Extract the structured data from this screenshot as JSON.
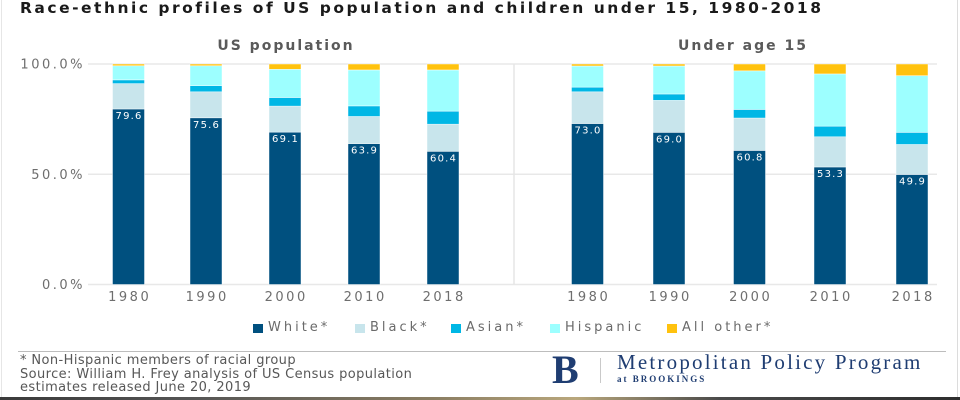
{
  "title": "Race-ethnic profiles of US population and children under 15, 1980-2018",
  "legend": {
    "position": "bottom",
    "items": [
      {
        "label": "White*",
        "color": "#00507f"
      },
      {
        "label": "Black*",
        "color": "#c8e5ec"
      },
      {
        "label": "Asian*",
        "color": "#00b7e5"
      },
      {
        "label": "Hispanic",
        "color": "#9dffff"
      },
      {
        "label": "All other*",
        "color": "#ffc20e"
      }
    ]
  },
  "footnote": {
    "note": "* Non-Hispanic members of racial group",
    "source_lines": [
      "Source: William H. Frey analysis of US Census population",
      "estimates released June 20, 2019"
    ]
  },
  "logo": {
    "letter": "B",
    "program": "Metropolitan Policy Program",
    "org": "at BROOKINGS",
    "color": "#1f3d72"
  },
  "chart_data": [
    {
      "type": "bar",
      "stacked": true,
      "title": "US population",
      "categories": [
        "1980",
        "1990",
        "2000",
        "2010",
        "2018"
      ],
      "series": [
        {
          "name": "White*",
          "values": [
            79.6,
            75.6,
            69.1,
            63.9,
            60.4
          ]
        },
        {
          "name": "Black*",
          "values": [
            11.5,
            11.8,
            11.8,
            12.3,
            12.3
          ]
        },
        {
          "name": "Asian*",
          "values": [
            1.7,
            2.8,
            3.9,
            4.8,
            5.9
          ]
        },
        {
          "name": "Hispanic",
          "values": [
            6.4,
            9.0,
            12.8,
            16.3,
            18.7
          ]
        },
        {
          "name": "All other*",
          "values": [
            0.8,
            0.8,
            2.4,
            2.7,
            2.7
          ]
        }
      ],
      "data_labels": [
        "79.6",
        "75.6",
        "69.1",
        "63.9",
        "60.4"
      ],
      "xlabel": "",
      "ylabel": "",
      "ylim": [
        0,
        100
      ],
      "yticks": [
        0,
        50,
        100
      ],
      "ytick_labels": [
        "0.0%",
        "50.0%",
        "100.0%"
      ],
      "grid": true
    },
    {
      "type": "bar",
      "stacked": true,
      "title": "Under age 15",
      "categories": [
        "1980",
        "1990",
        "2000",
        "2010",
        "2018"
      ],
      "series": [
        {
          "name": "White*",
          "values": [
            73.0,
            69.0,
            60.8,
            53.3,
            49.9
          ]
        },
        {
          "name": "Black*",
          "values": [
            14.4,
            14.5,
            14.7,
            13.7,
            13.6
          ]
        },
        {
          "name": "Asian*",
          "values": [
            2.1,
            2.9,
            3.9,
            4.8,
            5.5
          ]
        },
        {
          "name": "Hispanic",
          "values": [
            9.6,
            12.7,
            17.5,
            23.7,
            25.7
          ]
        },
        {
          "name": "All other*",
          "values": [
            0.9,
            0.9,
            3.1,
            4.5,
            5.3
          ]
        }
      ],
      "data_labels": [
        "73.0",
        "69.0",
        "60.8",
        "53.3",
        "49.9"
      ],
      "xlabel": "",
      "ylabel": "",
      "ylim": [
        0,
        100
      ],
      "shared_yaxis": true,
      "grid": true
    }
  ]
}
